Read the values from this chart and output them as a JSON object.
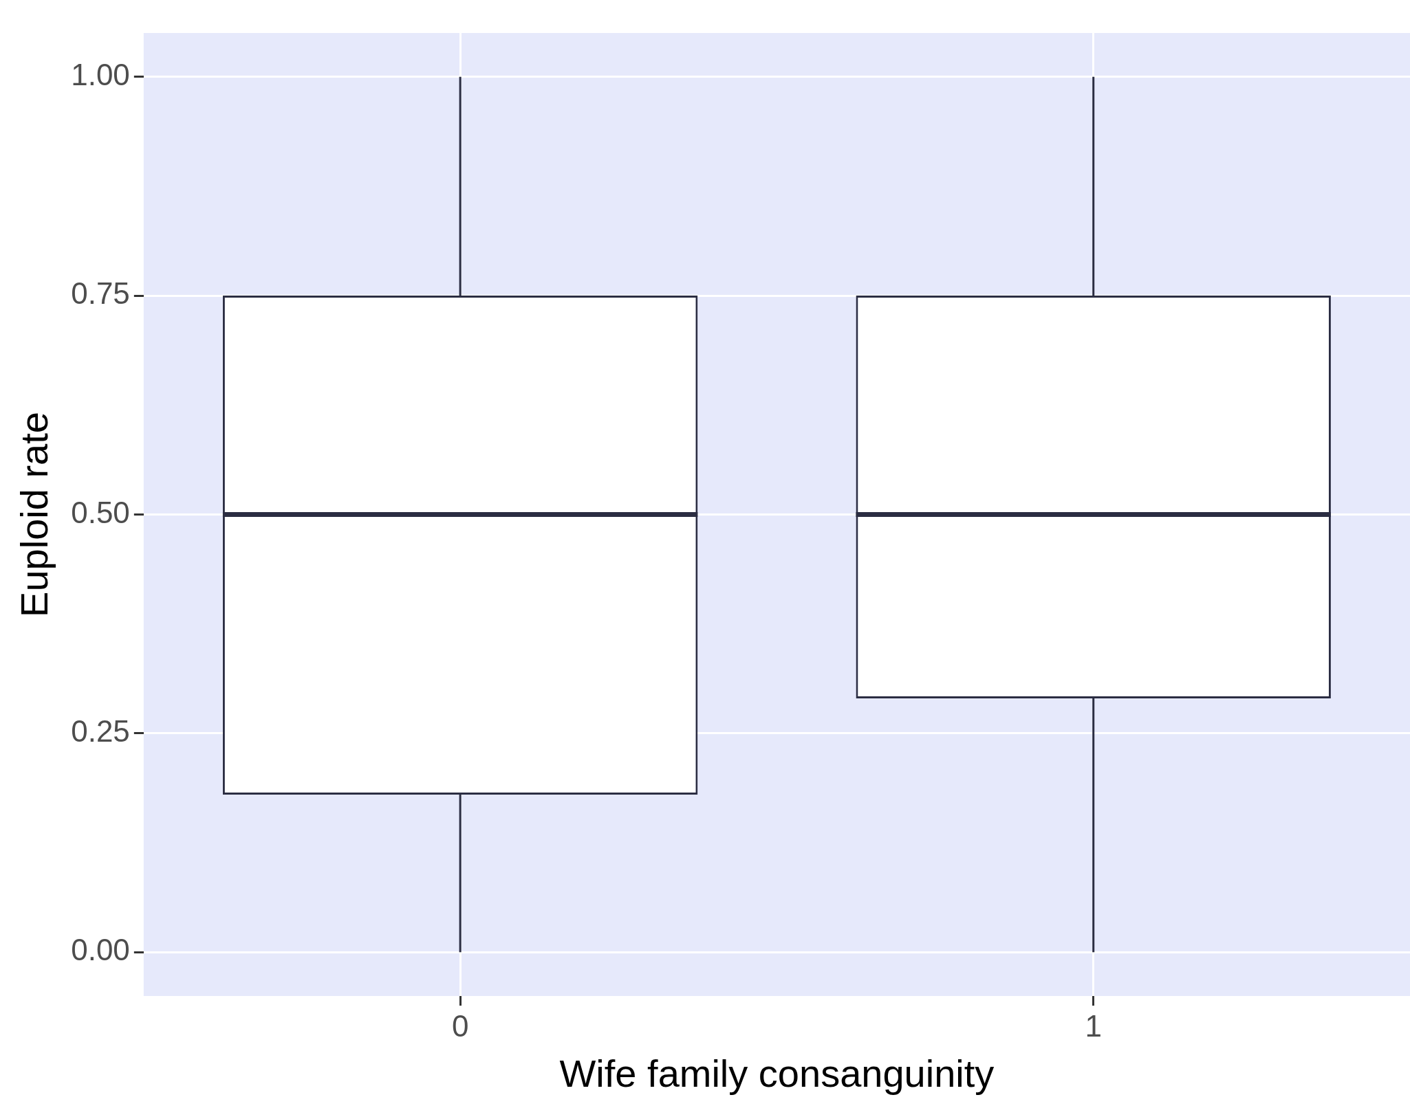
{
  "chart_data": {
    "type": "box",
    "xlabel": "Wife family consanguinity",
    "ylabel": "Euploid rate",
    "categories": [
      "0",
      "1"
    ],
    "boxes": [
      {
        "low": 0,
        "q1": 0.18,
        "median": 0.5,
        "q3": 0.75,
        "high": 1
      },
      {
        "low": 0,
        "q1": 0.29,
        "median": 0.5,
        "q3": 0.75,
        "high": 1
      }
    ],
    "ylim": [
      -0.05,
      1.05
    ],
    "yticks": [
      {
        "value": 0,
        "label": "0.00"
      },
      {
        "value": 0.25,
        "label": "0.25"
      },
      {
        "value": 0.5,
        "label": "0.50"
      },
      {
        "value": 0.75,
        "label": "0.75"
      },
      {
        "value": 1,
        "label": "1.00"
      }
    ],
    "grid": true,
    "legend": false
  }
}
